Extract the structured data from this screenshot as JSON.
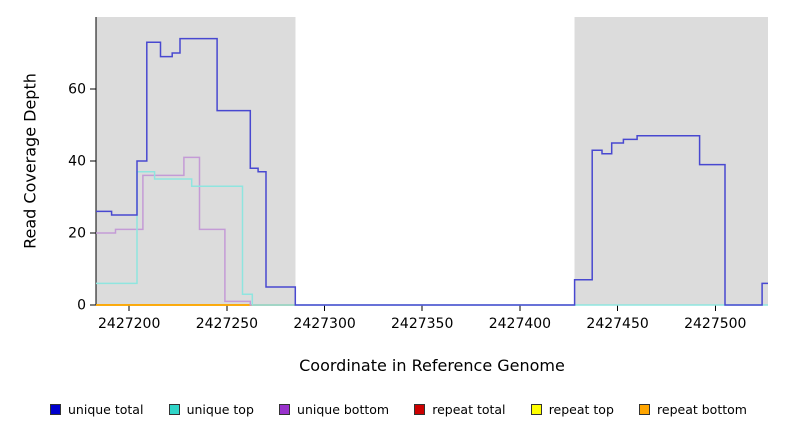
{
  "chart_data": {
    "type": "line",
    "step": true,
    "title": "",
    "xlabel": "Coordinate in Reference Genome",
    "ylabel": "Read Coverage Depth",
    "xlim": [
      2427183,
      2427527
    ],
    "ylim": [
      0,
      80
    ],
    "xticks": [
      2427200,
      2427250,
      2427300,
      2427350,
      2427400,
      2427450,
      2427500
    ],
    "yticks": [
      0,
      20,
      40,
      60
    ],
    "grid": false,
    "legend_position": "bottom",
    "background_shading": [
      {
        "x0": 2427183,
        "x1": 2427285,
        "color": "#DCDCDC"
      },
      {
        "x0": 2427428,
        "x1": 2427527,
        "color": "#DCDCDC"
      }
    ],
    "draw_order": [
      3,
      4,
      5,
      2,
      1,
      0
    ],
    "series": [
      {
        "name": "unique total",
        "color": "#0000CD",
        "line_color": "#4848D0",
        "points": [
          [
            2427183,
            26
          ],
          [
            2427191,
            25
          ],
          [
            2427204,
            40
          ],
          [
            2427209,
            73
          ],
          [
            2427216,
            69
          ],
          [
            2427222,
            70
          ],
          [
            2427226,
            74
          ],
          [
            2427245,
            54
          ],
          [
            2427262,
            38
          ],
          [
            2427266,
            37
          ],
          [
            2427270,
            5
          ],
          [
            2427285,
            0
          ],
          [
            2427428,
            7
          ],
          [
            2427437,
            43
          ],
          [
            2427442,
            42
          ],
          [
            2427447,
            45
          ],
          [
            2427453,
            46
          ],
          [
            2427460,
            47
          ],
          [
            2427492,
            39
          ],
          [
            2427505,
            0
          ],
          [
            2427524,
            6
          ]
        ],
        "xend": 2427527
      },
      {
        "name": "unique top",
        "color": "#30D5C8",
        "line_color": "#8FE5DF",
        "points": [
          [
            2427183,
            6
          ],
          [
            2427204,
            37
          ],
          [
            2427213,
            35
          ],
          [
            2427232,
            33
          ],
          [
            2427258,
            3
          ],
          [
            2427263,
            0
          ]
        ],
        "xend": 2427527
      },
      {
        "name": "unique bottom",
        "color": "#9932CC",
        "line_color": "#C49BD6",
        "points": [
          [
            2427183,
            20
          ],
          [
            2427193,
            21
          ],
          [
            2427207,
            36
          ],
          [
            2427228,
            41
          ],
          [
            2427236,
            21
          ],
          [
            2427249,
            1
          ],
          [
            2427262,
            0
          ]
        ],
        "xend": 2427285
      },
      {
        "name": "repeat total",
        "color": "#CC0000",
        "line_color": "#CC0000",
        "points": [
          [
            2427183,
            0
          ]
        ],
        "xend": 2427285
      },
      {
        "name": "repeat top",
        "color": "#FFFF00",
        "line_color": "#FFFF00",
        "points": [
          [
            2427183,
            0
          ]
        ],
        "xend": 2427285
      },
      {
        "name": "repeat bottom",
        "color": "#FFA500",
        "line_color": "#FFA500",
        "points": [
          [
            2427183,
            0
          ]
        ],
        "xend": 2427285
      }
    ]
  }
}
